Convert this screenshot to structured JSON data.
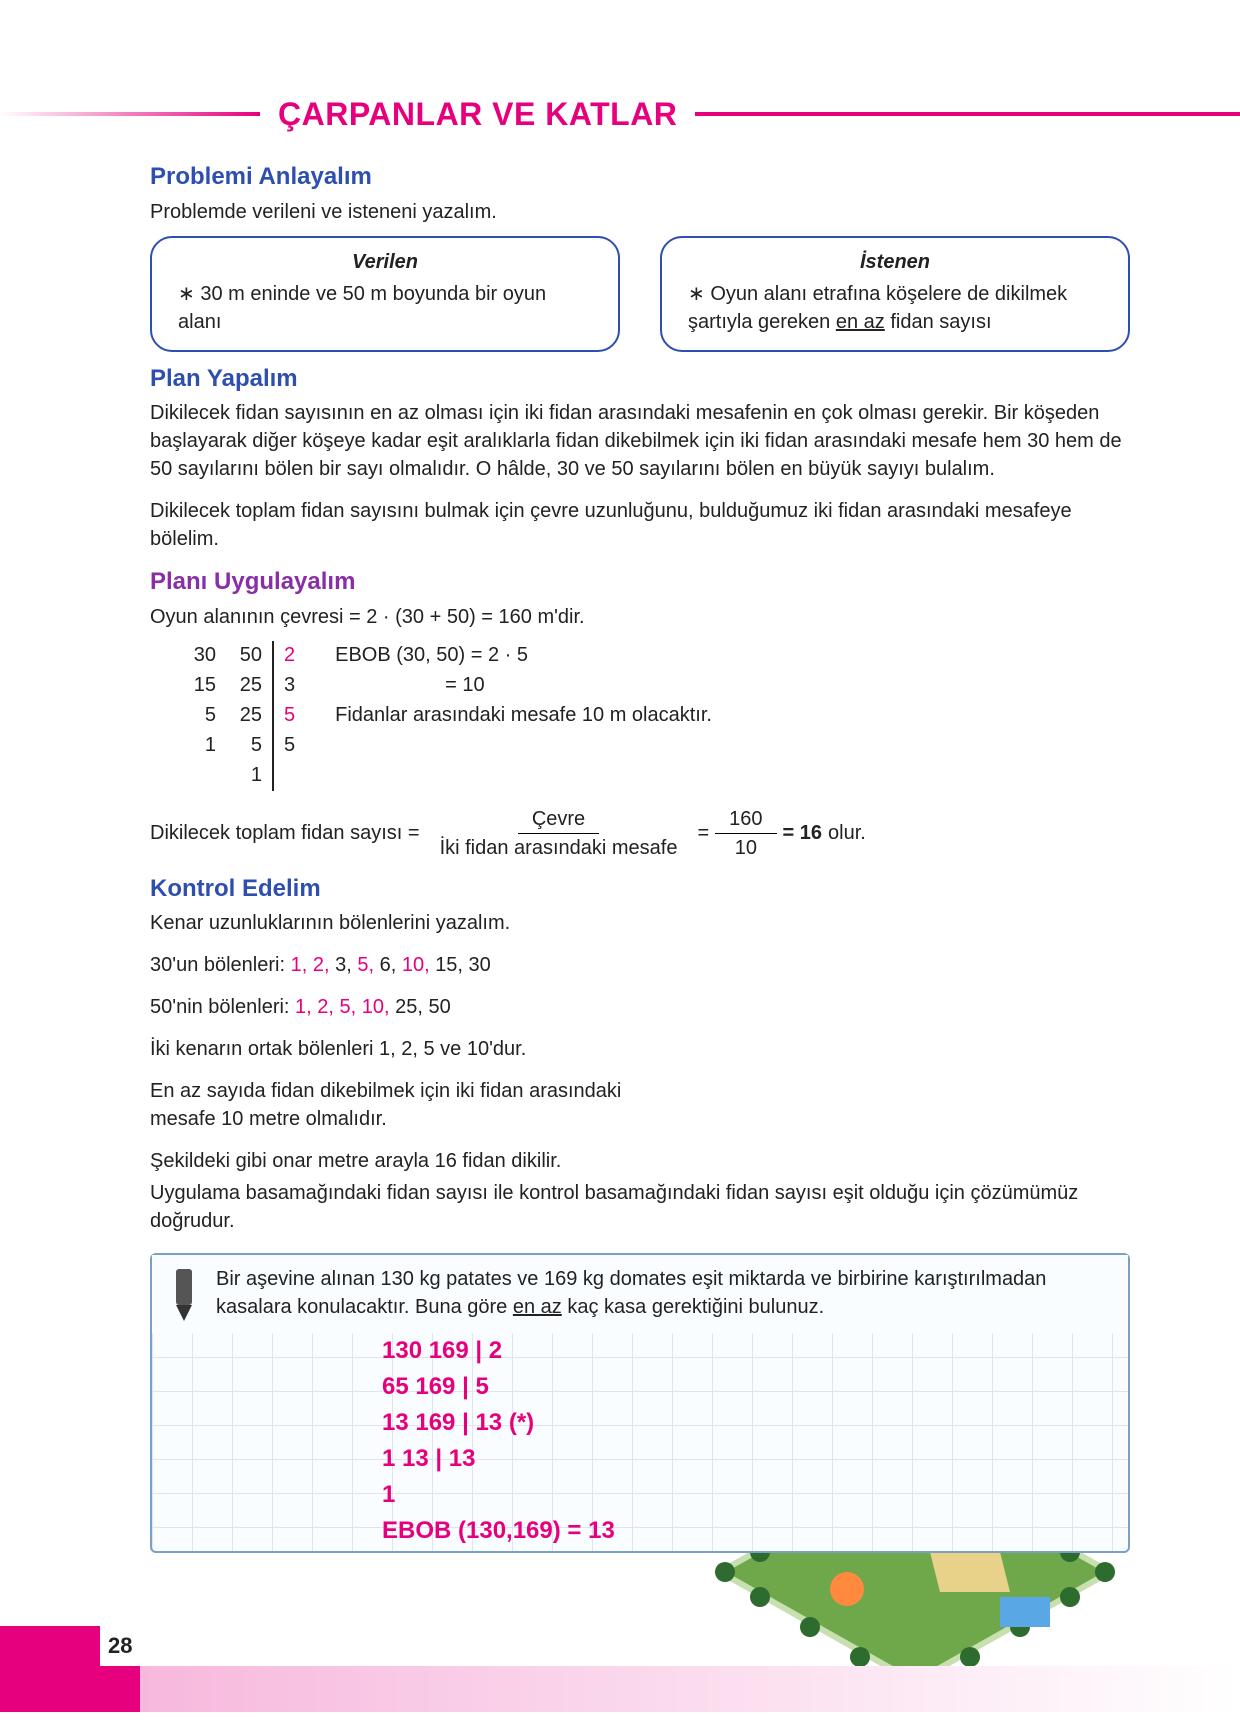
{
  "colors": {
    "accent": "#e6007e",
    "blue": "#2e4fb0",
    "purple": "#8a2ea8",
    "box_border": "#7aa0c4"
  },
  "page_number": "28",
  "chapter_title": "ÇARPANLAR VE KATLAR",
  "s1": {
    "heading": "Problemi Anlayalım",
    "intro": "Problemde verileni ve isteneni yazalım.",
    "given_head": "Verilen",
    "given_body": "∗ 30 m eninde ve 50 m boyunda bir oyun alanı",
    "wanted_head": "İstenen",
    "wanted_body_pre": "∗ Oyun alanı etrafına köşelere de dikilmek şartıyla gereken ",
    "wanted_body_ul": "en az",
    "wanted_body_post": " fidan sayısı"
  },
  "s2": {
    "heading": "Plan Yapalım",
    "p1": "Dikilecek fidan sayısının en az olması için iki fidan arasındaki mesafenin en çok olması gerekir. Bir köşeden başlayarak diğer köşeye kadar eşit aralıklarla fidan dikebilmek için iki fidan arasındaki mesafe hem 30 hem de 50 sayılarını bölen bir sayı olmalıdır. O hâlde, 30 ve 50 sayılarını bölen en büyük sayıyı bulalım.",
    "p2": "Dikilecek toplam fidan sayısını bulmak için çevre uzunluğunu, bulduğumuz iki fidan arasındaki mesafeye bölelim."
  },
  "s3": {
    "heading": "Planı Uygulayalım",
    "perimeter": "Oyun alanının çevresi = 2 · (30 + 50) = 160 m'dir.",
    "factor_col_a": [
      "30",
      "15",
      "5",
      "1",
      ""
    ],
    "factor_col_b": [
      "50",
      "25",
      "25",
      "5",
      "1"
    ],
    "factor_divs": [
      "2",
      "3",
      "5",
      "5"
    ],
    "factor_red_idx": [
      0,
      2
    ],
    "ebob_line1": "EBOB (30, 50) = 2 · 5",
    "ebob_line2": "= 10",
    "ebob_line3": "Fidanlar arasındaki mesafe 10 m olacaktır.",
    "frac_label": "Dikilecek toplam fidan sayısı =",
    "frac1_top": "Çevre",
    "frac1_bot": "İki fidan arasındaki mesafe",
    "frac2_top": "160",
    "frac2_bot": "10",
    "frac_result": "= 16",
    "frac_tail": " olur."
  },
  "s4": {
    "heading": "Kontrol Edelim",
    "p1": "Kenar uzunluklarının bölenlerini yazalım.",
    "p2_pre": "30'un bölenleri: ",
    "p2_red": "1, 2, ",
    "p2_mid1": "3, ",
    "p2_red2": "5, ",
    "p2_mid2": "6, ",
    "p2_red3": "10, ",
    "p2_tail": "15, 30",
    "p3_pre": "50'nin bölenleri: ",
    "p3_red": "1, 2, 5, 10, ",
    "p3_tail": " 25, 50",
    "p4": "İki kenarın ortak bölenleri 1, 2, 5 ve 10'dur.",
    "p5": "En az sayıda fidan dikebilmek için iki fidan arasındaki mesafe 10 metre olmalıdır.",
    "p6": "Şekildeki gibi onar metre arayla 16 fidan dikilir.",
    "p7": "Uygulama basamağındaki fidan sayısı ile kontrol basamağındaki fidan sayısı eşit olduğu için çözümümüz doğrudur."
  },
  "exercise": {
    "q_pre": "Bir aşevine alınan 130 kg patates ve 169 kg domates eşit miktarda ve birbirine karıştırılmadan kasalara konulacaktır. Buna göre ",
    "q_ul": "en az",
    "q_post": " kaç kasa gerektiğini bulunuz.",
    "lines": [
      "130 169 | 2",
      "65 169 | 5",
      "13 169 | 13 (*)",
      "1 13 | 13",
      "1",
      "EBOB (130,169) = 13"
    ]
  }
}
